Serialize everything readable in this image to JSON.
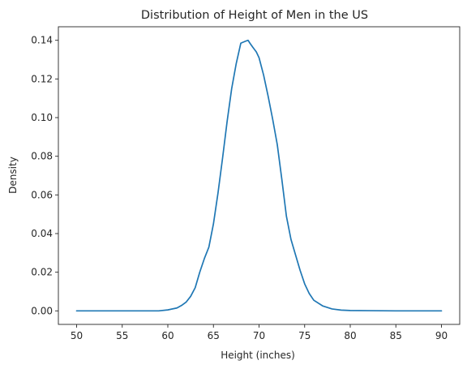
{
  "chart_data": {
    "type": "line",
    "title": "Distribution of Height of Men in the US",
    "xlabel": "Height (inches)",
    "ylabel": "Density",
    "xlim": [
      48,
      92
    ],
    "ylim": [
      -0.007,
      0.147
    ],
    "xticks": [
      50,
      55,
      60,
      65,
      70,
      75,
      80,
      85,
      90
    ],
    "xtick_labels": [
      "50",
      "55",
      "60",
      "65",
      "70",
      "75",
      "80",
      "85",
      "90"
    ],
    "yticks": [
      0.0,
      0.02,
      0.04,
      0.06,
      0.08,
      0.1,
      0.12,
      0.14
    ],
    "ytick_labels": [
      "0.00",
      "0.02",
      "0.04",
      "0.06",
      "0.08",
      "0.10",
      "0.12",
      "0.14"
    ],
    "grid": false,
    "legend": "none",
    "series": [
      {
        "color": "#1f77b4",
        "x": [
          50,
          55,
          59,
          60,
          61,
          61.5,
          62,
          62.5,
          63,
          63.5,
          64,
          64.5,
          65,
          65.5,
          66,
          66.5,
          67,
          67.5,
          68,
          68.5,
          68.8,
          69,
          69.3,
          69.7,
          70,
          70.5,
          71,
          71.5,
          72,
          72.5,
          73,
          73.5,
          74,
          74.5,
          75,
          75.5,
          76,
          77,
          78,
          79,
          80,
          82,
          85,
          90
        ],
        "y": [
          0.0,
          0.0,
          0.0,
          0.0005,
          0.0015,
          0.0028,
          0.0045,
          0.0075,
          0.012,
          0.02,
          0.027,
          0.033,
          0.045,
          0.061,
          0.079,
          0.098,
          0.115,
          0.128,
          0.1385,
          0.1395,
          0.14,
          0.1385,
          0.1365,
          0.134,
          0.131,
          0.122,
          0.111,
          0.099,
          0.086,
          0.068,
          0.049,
          0.037,
          0.029,
          0.021,
          0.014,
          0.009,
          0.0055,
          0.0025,
          0.001,
          0.0004,
          0.0002,
          0.0001,
          0.0,
          0.0
        ]
      }
    ]
  }
}
